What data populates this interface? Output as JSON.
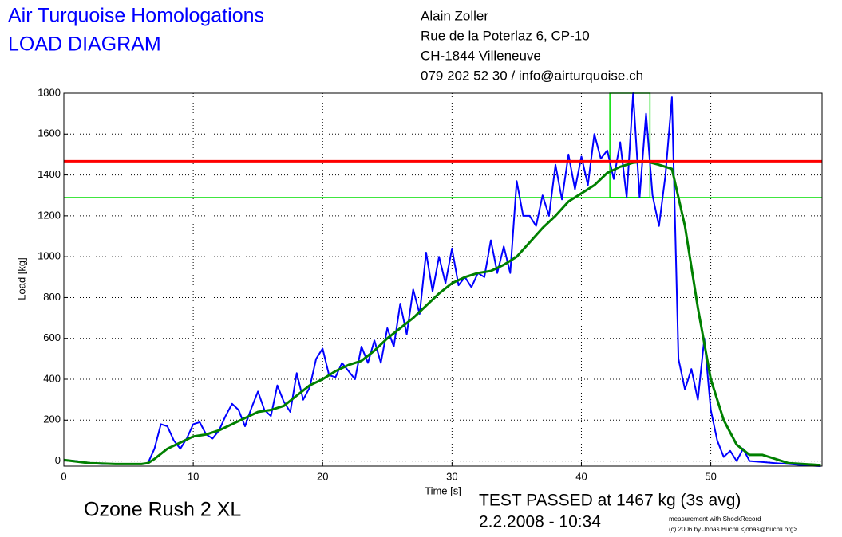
{
  "chart_data": {
    "type": "line",
    "title": "Air Turquoise Homologations",
    "subtitle": "LOAD DIAGRAM",
    "address": [
      "Alain Zoller",
      "Rue de la Poterlaz 6, CP-10",
      "CH-1844 Villeneuve",
      "079 202 52 30 / info@airturquoise.ch"
    ],
    "glider": "Ozone Rush 2 XL",
    "result": "TEST PASSED at 1467 kg (3s avg)",
    "date": "2.2.2008 - 10:34",
    "credit": [
      "measurement with ShockRecord",
      "(c) 2006 by Jonas Buchli <jonas@buchli.org>"
    ],
    "xlabel": "Time [s]",
    "ylabel": "Load [kg]",
    "xlim": [
      0,
      58.6
    ],
    "ylim": [
      -25,
      1800
    ],
    "xticks": [
      0,
      10,
      20,
      30,
      40,
      50
    ],
    "yticks": [
      0,
      200,
      400,
      600,
      800,
      1000,
      1200,
      1400,
      1600,
      1800
    ],
    "grid": true,
    "series": [
      {
        "color": "#0000ff",
        "x": [
          0,
          1,
          2,
          3,
          4,
          5,
          6,
          6.5,
          7,
          7.5,
          8,
          8.5,
          9,
          9.5,
          10,
          10.5,
          11,
          11.5,
          12,
          12.5,
          13,
          13.5,
          14,
          14.5,
          15,
          15.5,
          16,
          16.5,
          17,
          17.5,
          18,
          18.5,
          19,
          19.5,
          20,
          20.5,
          21,
          21.5,
          22,
          22.5,
          23,
          23.5,
          24,
          24.5,
          25,
          25.5,
          26,
          26.5,
          27,
          27.5,
          28,
          28.5,
          29,
          29.5,
          30,
          30.5,
          31,
          31.5,
          32,
          32.5,
          33,
          33.5,
          34,
          34.5,
          35,
          35.5,
          36,
          36.5,
          37,
          37.5,
          38,
          38.5,
          39,
          39.5,
          40,
          40.5,
          41,
          41.5,
          42,
          42.5,
          43,
          43.5,
          44,
          44.5,
          45,
          45.5,
          46,
          46.5,
          47,
          47.5,
          48,
          48.5,
          49,
          49.5,
          50,
          50.5,
          51,
          51.5,
          52,
          52.5,
          53,
          54,
          55,
          56,
          57,
          58.5
        ],
        "values": [
          5,
          0,
          -10,
          -15,
          -15,
          -15,
          -15,
          -10,
          60,
          180,
          170,
          100,
          60,
          110,
          180,
          190,
          130,
          110,
          150,
          220,
          280,
          250,
          170,
          260,
          340,
          250,
          220,
          370,
          290,
          240,
          430,
          300,
          360,
          500,
          550,
          420,
          410,
          480,
          440,
          400,
          560,
          480,
          590,
          480,
          650,
          560,
          770,
          620,
          840,
          720,
          1020,
          830,
          1000,
          870,
          1040,
          860,
          900,
          850,
          920,
          900,
          1080,
          920,
          1050,
          920,
          1370,
          1200,
          1200,
          1150,
          1300,
          1200,
          1450,
          1280,
          1500,
          1330,
          1490,
          1350,
          1600,
          1480,
          1520,
          1380,
          1560,
          1290,
          1800,
          1290,
          1700,
          1300,
          1150,
          1400,
          1780,
          500,
          350,
          450,
          300,
          600,
          250,
          100,
          20,
          50,
          0,
          60,
          0,
          -5,
          -10,
          -15,
          -20,
          -25
        ]
      },
      {
        "color": "#008000",
        "x": [
          0,
          2,
          4,
          6,
          6.5,
          7,
          8,
          9,
          10,
          11,
          12,
          13,
          14,
          15,
          16,
          17,
          18,
          19,
          20,
          21,
          22,
          23,
          24,
          25,
          26,
          27,
          28,
          29,
          30,
          31,
          32,
          33,
          34,
          35,
          36,
          37,
          38,
          39,
          40,
          41,
          42,
          43,
          44,
          45,
          46,
          47,
          48,
          49,
          50,
          51,
          52,
          53,
          54,
          55,
          56,
          58.5
        ],
        "values": [
          5,
          -10,
          -15,
          -15,
          -10,
          10,
          60,
          90,
          120,
          130,
          150,
          180,
          210,
          240,
          250,
          270,
          320,
          370,
          400,
          440,
          470,
          490,
          540,
          600,
          650,
          700,
          760,
          820,
          870,
          900,
          920,
          930,
          960,
          1000,
          1070,
          1140,
          1200,
          1270,
          1310,
          1350,
          1410,
          1440,
          1460,
          1467,
          1450,
          1430,
          1150,
          750,
          400,
          200,
          80,
          30,
          30,
          10,
          -10,
          -20
        ]
      }
    ],
    "limit_line": {
      "value": 1467,
      "color": "#ff0000"
    },
    "window": {
      "x": [
        42.2,
        45.3
      ],
      "y": [
        1290,
        1800
      ],
      "color": "#00dd00"
    }
  }
}
